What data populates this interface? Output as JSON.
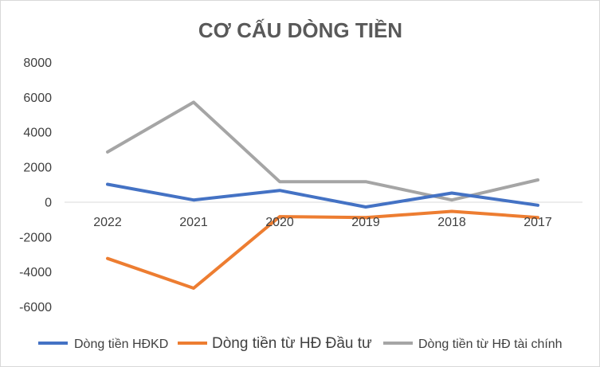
{
  "chart_data": {
    "type": "line",
    "title": "CƠ CẤU DÒNG TIỀN",
    "xlabel": "",
    "ylabel": "",
    "categories": [
      "2022",
      "2021",
      "2020",
      "2019",
      "2018",
      "2017"
    ],
    "ylim": [
      -6000,
      8000
    ],
    "yticks": [
      "8000",
      "6000",
      "4000",
      "2000",
      "0",
      "-2000",
      "-4000",
      "-6000"
    ],
    "grid": false,
    "legend_position": "bottom",
    "series": [
      {
        "name": "Dòng tiền HĐKD",
        "color": "#4472c4",
        "values": [
          1000,
          100,
          650,
          -300,
          500,
          -200
        ]
      },
      {
        "name": "Dòng tiền từ HĐ Đầu tư",
        "color": "#ed7d31",
        "values": [
          -3250,
          -4950,
          -850,
          -900,
          -550,
          -900
        ]
      },
      {
        "name": "Dòng tiền từ HĐ tài chính",
        "color": "#a5a5a5",
        "values": [
          2850,
          5700,
          1150,
          1150,
          100,
          1250
        ]
      }
    ]
  }
}
